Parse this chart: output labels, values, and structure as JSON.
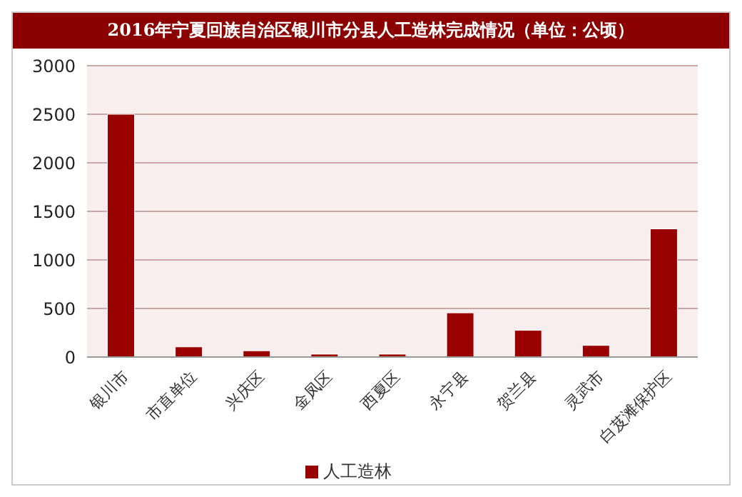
{
  "chart_data": {
    "type": "bar",
    "title": "2016年宁夏回族自治区银川市分县人工造林完成情况（单位：公顷）",
    "categories": [
      "银川市",
      "市直单位",
      "兴庆区",
      "金凤区",
      "西夏区",
      "永宁县",
      "贺兰县",
      "灵武市",
      "白芨滩保护区"
    ],
    "series": [
      {
        "name": "人工造林",
        "color": "#990000",
        "values": [
          2500,
          105,
          65,
          30,
          30,
          455,
          275,
          120,
          1320
        ]
      }
    ],
    "ylim": [
      0,
      3000
    ],
    "yticks": [
      0,
      500,
      1000,
      1500,
      2000,
      2500,
      3000
    ],
    "grid": "y",
    "legend": "bottom"
  }
}
